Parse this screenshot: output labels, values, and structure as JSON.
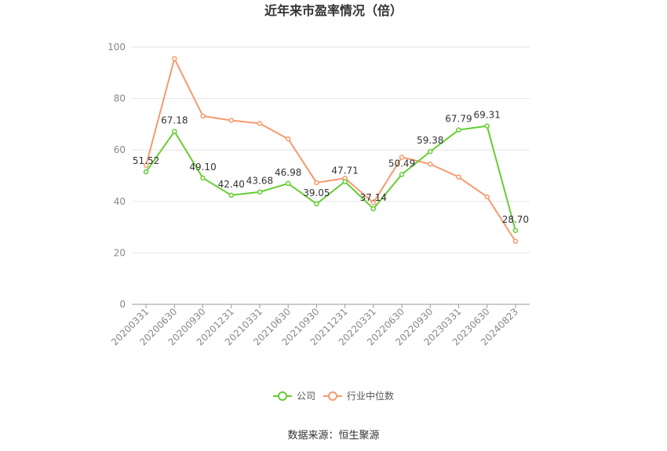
{
  "source": "数据来源：恒生聚源",
  "colors": {
    "company": "#66cc33",
    "industry": "#f59a6e",
    "grid": "#e6e6e6",
    "axis": "#999999"
  },
  "chart_data": {
    "type": "line",
    "title": "近年来市盈率情况（倍）",
    "xlabel": "",
    "ylabel": "",
    "ylim": [
      0,
      100
    ],
    "yticks": [
      0,
      20,
      40,
      60,
      80,
      100
    ],
    "grid": true,
    "legend_position": "bottom",
    "categories": [
      "20200331",
      "20200630",
      "20200930",
      "20201231",
      "20210331",
      "20210630",
      "20210930",
      "20211231",
      "20220331",
      "20220630",
      "20220930",
      "20230331",
      "20230630",
      "20240823"
    ],
    "series": [
      {
        "name": "公司",
        "color": "#66cc33",
        "values": [
          51.52,
          67.18,
          49.1,
          42.4,
          43.68,
          46.98,
          39.05,
          47.71,
          37.14,
          50.49,
          59.38,
          67.79,
          69.31,
          28.7
        ],
        "labels": [
          "51.52",
          "67.18",
          "49.10",
          "42.40",
          "43.68",
          "46.98",
          "39.05",
          "47.71",
          "37.14",
          "50.49",
          "59.38",
          "67.79",
          "69.31",
          "28.70"
        ]
      },
      {
        "name": "行业中位数",
        "color": "#f59a6e",
        "values": [
          54.0,
          95.5,
          73.2,
          71.5,
          70.3,
          64.3,
          47.3,
          49.0,
          39.5,
          57.2,
          54.5,
          49.5,
          41.8,
          24.5
        ]
      }
    ]
  }
}
